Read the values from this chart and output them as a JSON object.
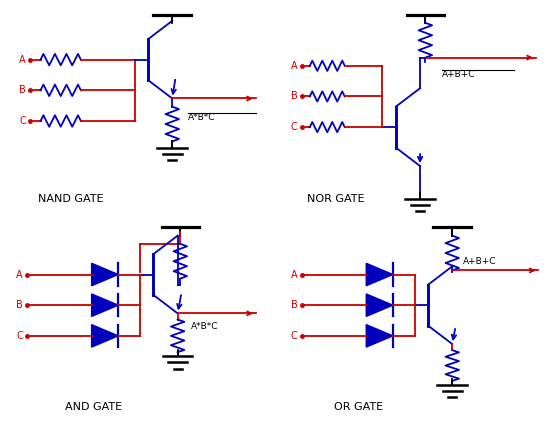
{
  "bg_color": "#ffffff",
  "blue": "#0000bb",
  "red": "#cc0000",
  "black": "#000000",
  "gates": [
    "NAND GATE",
    "NOR GATE",
    "AND GATE",
    "OR GATE"
  ],
  "lw": 1.3,
  "label_fs": 7,
  "gate_fs": 8
}
